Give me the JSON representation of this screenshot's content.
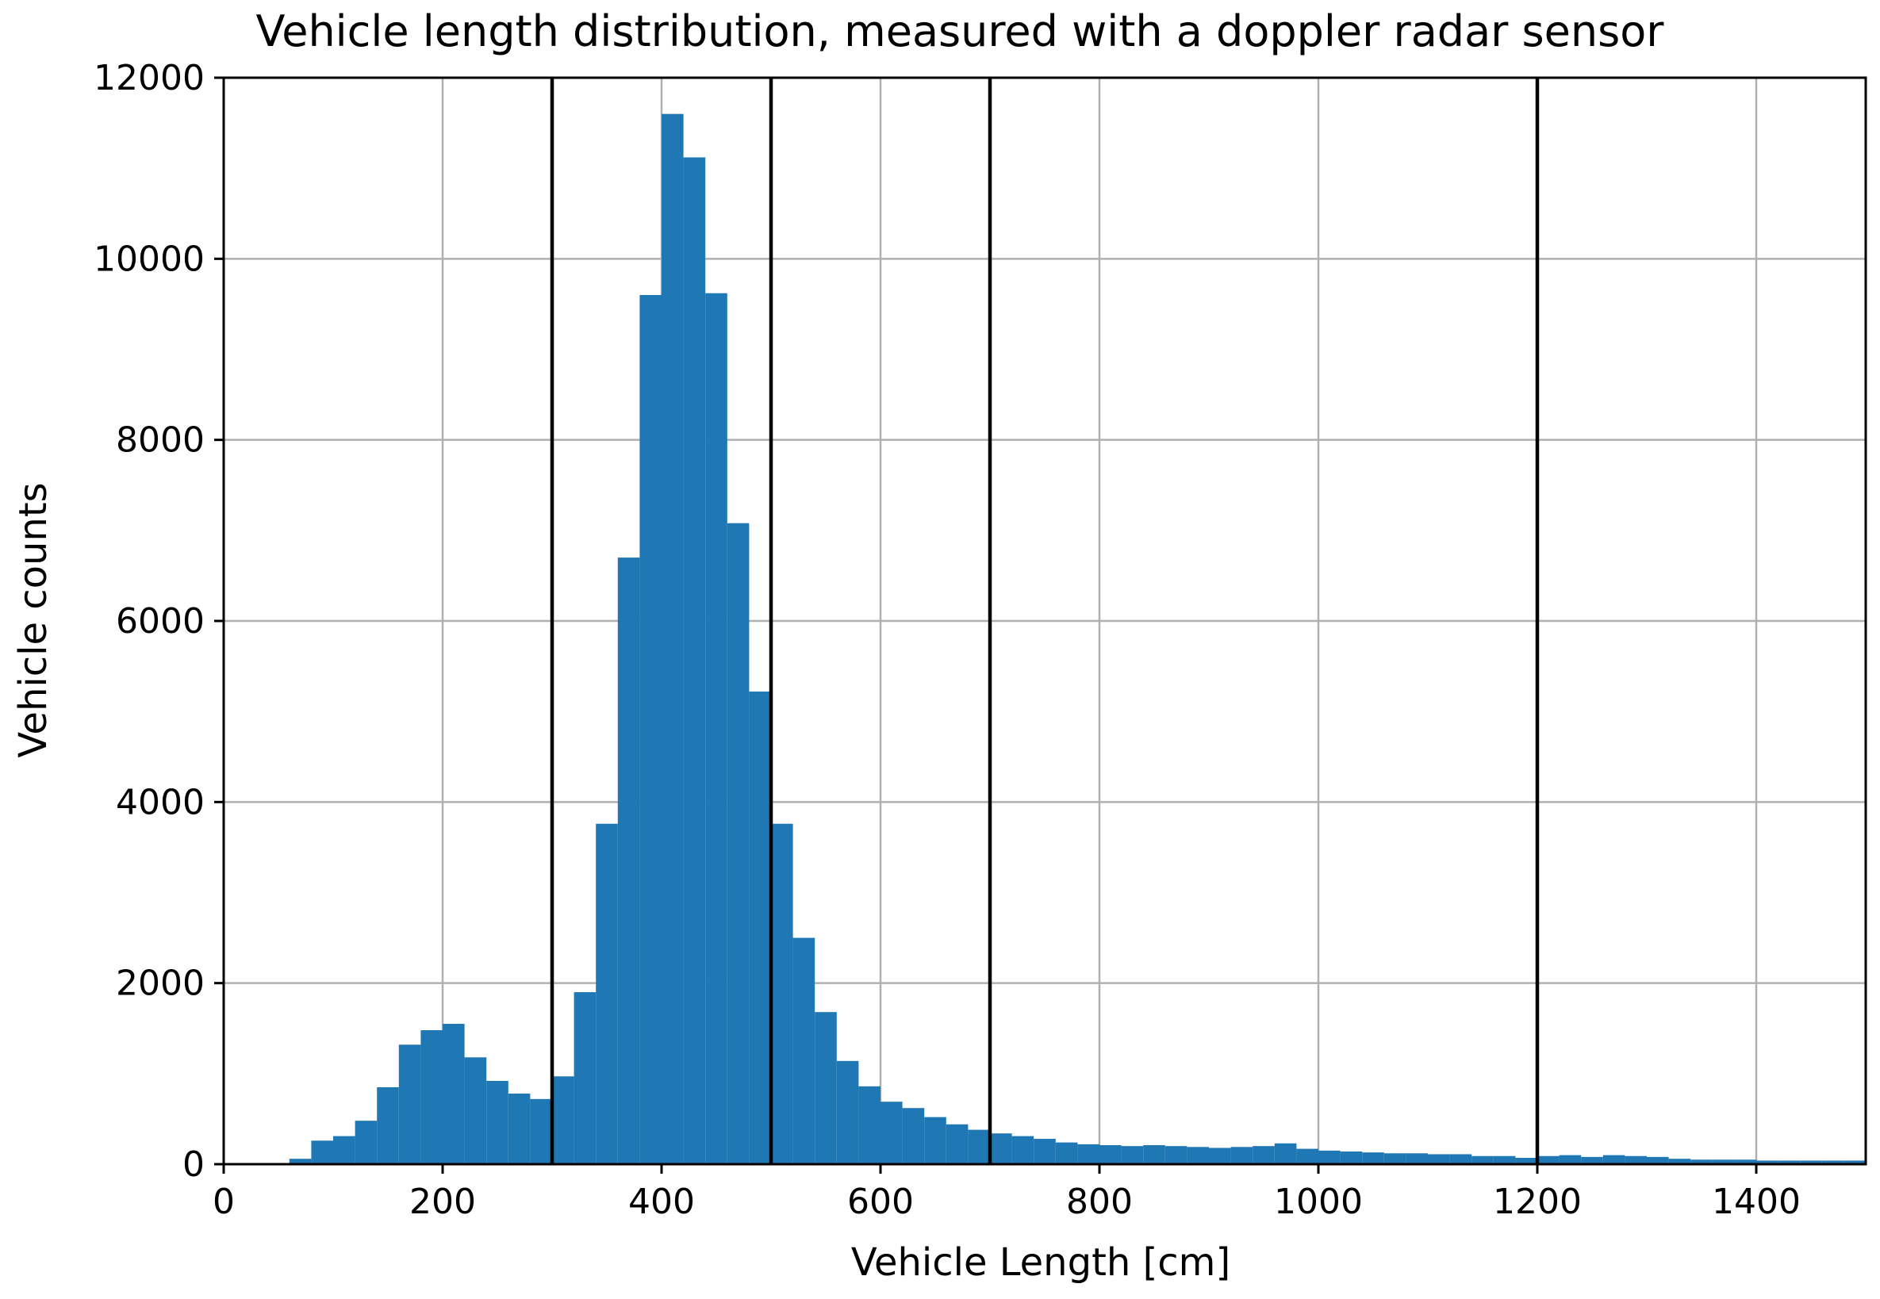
{
  "chart_data": {
    "type": "bar",
    "title": "Vehicle length distribution, measured with a doppler radar sensor",
    "xlabel": "Vehicle Length [cm]",
    "ylabel": "Vehicle counts",
    "xlim": [
      0,
      1500
    ],
    "ylim": [
      0,
      12000
    ],
    "xticks": [
      "0",
      "200",
      "400",
      "600",
      "800",
      "1000",
      "1200",
      "1400"
    ],
    "yticks": [
      "0",
      "2000",
      "4000",
      "6000",
      "8000",
      "10000",
      "12000"
    ],
    "grid": true,
    "bar_color": "#1f77b4",
    "bin_width": 20,
    "bin_starts": [
      60,
      80,
      100,
      120,
      140,
      160,
      180,
      200,
      220,
      240,
      260,
      280,
      300,
      320,
      340,
      360,
      380,
      400,
      420,
      440,
      460,
      480,
      500,
      520,
      540,
      560,
      580,
      600,
      620,
      640,
      660,
      680,
      700,
      720,
      740,
      760,
      780,
      800,
      820,
      840,
      860,
      880,
      900,
      920,
      940,
      960,
      980,
      1000,
      1020,
      1040,
      1060,
      1080,
      1100,
      1120,
      1140,
      1160,
      1180,
      1200,
      1220,
      1240,
      1260,
      1280,
      1300,
      1320,
      1340,
      1360,
      1380,
      1400,
      1420,
      1440,
      1460,
      1480
    ],
    "values": [
      60,
      260,
      310,
      480,
      850,
      1320,
      1480,
      1550,
      1180,
      920,
      780,
      720,
      970,
      1900,
      3760,
      6700,
      9600,
      11600,
      11120,
      9620,
      7080,
      5220,
      3760,
      2500,
      1680,
      1140,
      860,
      690,
      620,
      520,
      440,
      380,
      340,
      310,
      280,
      240,
      220,
      210,
      200,
      210,
      200,
      190,
      180,
      190,
      200,
      230,
      170,
      150,
      140,
      130,
      120,
      120,
      110,
      110,
      90,
      90,
      70,
      90,
      100,
      80,
      100,
      90,
      80,
      60,
      50,
      50,
      50,
      40,
      40,
      40,
      40,
      40
    ],
    "vertical_lines": [
      300,
      500,
      700,
      1200
    ]
  }
}
